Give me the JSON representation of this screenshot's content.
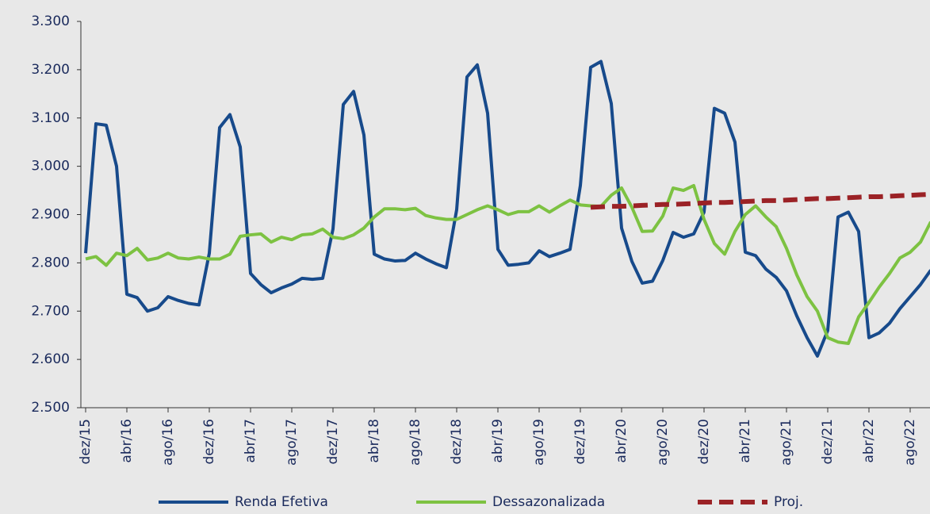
{
  "chart_data": {
    "type": "line",
    "categories": [
      "dez/15",
      null,
      null,
      null,
      "abr/16",
      null,
      null,
      null,
      "ago/16",
      null,
      null,
      null,
      "dez/16",
      null,
      null,
      null,
      "abr/17",
      null,
      null,
      null,
      "ago/17",
      null,
      null,
      null,
      "dez/17",
      null,
      null,
      null,
      "abr/18",
      null,
      null,
      null,
      "ago/18",
      null,
      null,
      null,
      "dez/18",
      null,
      null,
      null,
      "abr/19",
      null,
      null,
      null,
      "ago/19",
      null,
      null,
      null,
      "dez/19",
      null,
      null,
      null,
      "abr/20",
      null,
      null,
      null,
      "ago/20",
      null,
      null,
      null,
      "dez/20",
      null,
      null,
      null,
      "abr/21",
      null,
      null,
      null,
      "ago/21",
      null,
      null,
      null,
      "dez/21",
      null,
      null,
      null,
      "abr/22",
      null,
      null,
      null,
      "ago/22",
      null,
      null
    ],
    "series": [
      {
        "name": "Renda Efetiva",
        "color": "#174a8b",
        "dash": false,
        "values": [
          2820,
          3088,
          3085,
          3000,
          2735,
          2728,
          2700,
          2707,
          2730,
          2722,
          2716,
          2713,
          2820,
          3080,
          3107,
          3040,
          2778,
          2755,
          2738,
          2748,
          2756,
          2768,
          2766,
          2768,
          2870,
          3128,
          3155,
          3065,
          2818,
          2808,
          2804,
          2805,
          2820,
          2808,
          2798,
          2790,
          2910,
          3185,
          3210,
          3110,
          2828,
          2795,
          2797,
          2800,
          2825,
          2813,
          2820,
          2828,
          2960,
          3205,
          3217,
          3130,
          2872,
          2803,
          2758,
          2762,
          2805,
          2863,
          2853,
          2860,
          2905,
          3120,
          3110,
          3050,
          2822,
          2815,
          2787,
          2770,
          2742,
          2690,
          2645,
          2607,
          2660,
          2895,
          2905,
          2865,
          2645,
          2655,
          2675,
          2705,
          2730,
          2755,
          2785
        ]
      },
      {
        "name": "Dessazonalizada",
        "color": "#7dc242",
        "dash": false,
        "values": [
          2808,
          2813,
          2795,
          2820,
          2815,
          2830,
          2806,
          2810,
          2820,
          2810,
          2808,
          2812,
          2808,
          2808,
          2818,
          2855,
          2858,
          2860,
          2843,
          2853,
          2848,
          2858,
          2860,
          2870,
          2853,
          2850,
          2858,
          2872,
          2895,
          2912,
          2912,
          2910,
          2913,
          2898,
          2893,
          2890,
          2890,
          2900,
          2910,
          2918,
          2910,
          2900,
          2906,
          2906,
          2918,
          2905,
          2918,
          2930,
          2920,
          2918,
          2917,
          2940,
          2955,
          2915,
          2865,
          2866,
          2897,
          2955,
          2950,
          2960,
          2890,
          2840,
          2818,
          2865,
          2900,
          2918,
          2895,
          2875,
          2830,
          2775,
          2730,
          2700,
          2645,
          2636,
          2633,
          2688,
          2718,
          2750,
          2778,
          2810,
          2822,
          2843,
          2885
        ]
      },
      {
        "name": "Proj.",
        "color": "#9b2226",
        "dash": true,
        "values": [
          null,
          null,
          null,
          null,
          null,
          null,
          null,
          null,
          null,
          null,
          null,
          null,
          null,
          null,
          null,
          null,
          null,
          null,
          null,
          null,
          null,
          null,
          null,
          null,
          null,
          null,
          null,
          null,
          null,
          null,
          null,
          null,
          null,
          null,
          null,
          null,
          null,
          null,
          null,
          null,
          null,
          null,
          null,
          null,
          null,
          null,
          null,
          null,
          null,
          2915,
          2916,
          2917,
          2917,
          2918,
          2919,
          2920,
          2921,
          2921,
          2922,
          2923,
          2924,
          2925,
          2925,
          2926,
          2927,
          2928,
          2929,
          2929,
          2930,
          2931,
          2932,
          2933,
          2933,
          2934,
          2935,
          2936,
          2937,
          2937,
          2938,
          2939,
          2940,
          2941,
          2942
        ]
      }
    ],
    "ylim": [
      2500,
      3300
    ],
    "yticks": [
      {
        "value": 2500,
        "label": "2.500"
      },
      {
        "value": 2600,
        "label": "2.600"
      },
      {
        "value": 2700,
        "label": "2.700"
      },
      {
        "value": 2800,
        "label": "2.800"
      },
      {
        "value": 2900,
        "label": "2.900"
      },
      {
        "value": 3000,
        "label": "3.000"
      },
      {
        "value": 3100,
        "label": "3.100"
      },
      {
        "value": 3200,
        "label": "3.200"
      },
      {
        "value": 3300,
        "label": "3.300"
      }
    ],
    "grid": false,
    "legend": "bottom"
  }
}
